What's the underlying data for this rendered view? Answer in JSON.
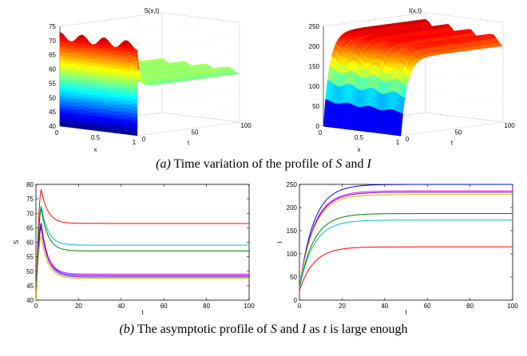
{
  "captions": {
    "a": {
      "label": "(a)",
      "text": " Time variation of the profile of ",
      "v1": "S",
      "mid": " and ",
      "v2": "I"
    },
    "b": {
      "label": "(b)",
      "text": " The asymptotic profile of ",
      "v1": "S",
      "mid": " and ",
      "v2": "I",
      "mid2": " as ",
      "v3": "t",
      "tail": " is large enough"
    }
  },
  "chart_data": [
    {
      "type": "surface",
      "title": "S(x,t)",
      "xlabel": "x",
      "ylabel": "t",
      "zlim": [
        40,
        75
      ],
      "z_ticks": [
        "40",
        "45",
        "50",
        "55",
        "60",
        "65",
        "70",
        "75"
      ],
      "x_ticks": [
        "0",
        "0.5",
        "1"
      ],
      "t_ticks": [
        "0",
        "50",
        "100"
      ],
      "description_values": {
        "initial_peak": 73,
        "initial_trough": 70,
        "steady_low": 57,
        "steady_high": 59
      }
    },
    {
      "type": "surface",
      "title": "I(x,t)",
      "xlabel": "x",
      "ylabel": "t",
      "zlim": [
        0,
        250
      ],
      "z_ticks": [
        "0",
        "50",
        "100",
        "150",
        "200",
        "250"
      ],
      "x_ticks": [
        "0",
        "0.5",
        "1"
      ],
      "t_ticks": [
        "0",
        "50",
        "100"
      ],
      "description_values": {
        "start": 0,
        "plateau_high": 225,
        "plateau_low": 165
      }
    },
    {
      "type": "line",
      "xlabel": "t",
      "ylabel": "S",
      "xlim": [
        0,
        100
      ],
      "ylim": [
        40,
        80
      ],
      "x_ticks": [
        "0",
        "20",
        "40",
        "60",
        "80",
        "100"
      ],
      "y_ticks": [
        "40",
        "45",
        "50",
        "55",
        "60",
        "65",
        "70",
        "75",
        "80"
      ],
      "series": [
        {
          "color": "#ff0000",
          "start": 40,
          "peak_t": 2.5,
          "peak": 78,
          "final": 66.5
        },
        {
          "color": "#00c0c0",
          "start": 40,
          "peak_t": 2.5,
          "peak": 72.5,
          "final": 59
        },
        {
          "color": "#008000",
          "start": 40,
          "peak_t": 2.5,
          "peak": 71.5,
          "final": 57
        },
        {
          "color": "#0000ff",
          "start": 40,
          "peak_t": 2.5,
          "peak": 66.5,
          "final": 48.5
        },
        {
          "color": "#ff00ff",
          "start": 40,
          "peak_t": 2.5,
          "peak": 65.5,
          "final": 49
        },
        {
          "color": "#8000c0",
          "start": 40,
          "peak_t": 2.5,
          "peak": 65,
          "final": 48
        },
        {
          "color": "#c0c000",
          "start": 40,
          "peak_t": 2.5,
          "peak": 62,
          "final": 47.5
        }
      ]
    },
    {
      "type": "line",
      "xlabel": "t",
      "ylabel": "I",
      "xlim": [
        0,
        100
      ],
      "ylim": [
        0,
        250
      ],
      "x_ticks": [
        "0",
        "20",
        "40",
        "60",
        "80",
        "100"
      ],
      "y_ticks": [
        "0",
        "50",
        "100",
        "150",
        "200",
        "250"
      ],
      "series": [
        {
          "color": "#0000ff",
          "start": 25,
          "final": 250,
          "rate": 0.15
        },
        {
          "color": "#ff00ff",
          "start": 25,
          "final": 236,
          "rate": 0.15
        },
        {
          "color": "#8000c0",
          "start": 25,
          "final": 233,
          "rate": 0.15
        },
        {
          "color": "#c0c000",
          "start": 25,
          "final": 228,
          "rate": 0.15
        },
        {
          "color": "#008000",
          "start": 25,
          "final": 187,
          "rate": 0.15
        },
        {
          "color": "#00c0c0",
          "start": 25,
          "final": 173,
          "rate": 0.15
        },
        {
          "color": "#ff0000",
          "start": 20,
          "final": 115,
          "rate": 0.15
        }
      ]
    }
  ]
}
